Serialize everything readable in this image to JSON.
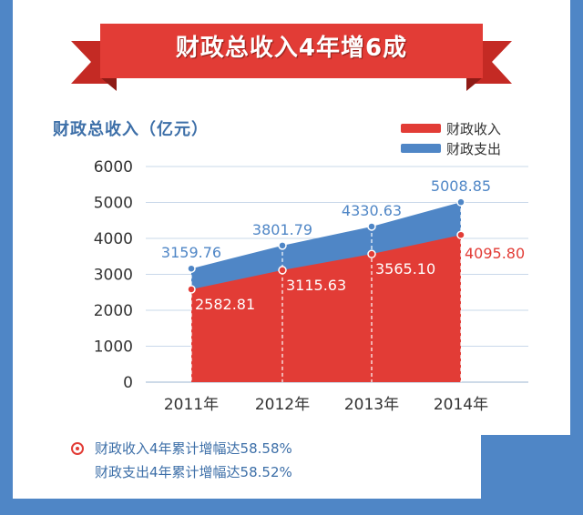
{
  "banner": {
    "title": "财政总收入4年增6成"
  },
  "colors": {
    "income": "#e23c36",
    "expense": "#4f86c6",
    "banner": "#e23c36",
    "banner_dark": "#a8201a",
    "axis_text": "#333333",
    "title_text": "#3d6fa8"
  },
  "chart_data": {
    "type": "area",
    "title": "财政总收入（亿元）",
    "categories": [
      "2011年",
      "2012年",
      "2013年",
      "2014年"
    ],
    "ylim": [
      0,
      6000
    ],
    "yticks": [
      "0",
      "1000",
      "2000",
      "3000",
      "4000",
      "5000",
      "6000"
    ],
    "grid": true,
    "legend_position": "top-right",
    "series": [
      {
        "name": "财政收入",
        "values": [
          2582.81,
          3115.63,
          3565.1,
          4095.8
        ],
        "labels": [
          "2582.81",
          "3115.63",
          "3565.10",
          "4095.80"
        ]
      },
      {
        "name": "财政支出",
        "values": [
          3159.76,
          3801.79,
          4330.63,
          5008.85
        ],
        "labels": [
          "3159.76",
          "3801.79",
          "4330.63",
          "5008.85"
        ]
      }
    ]
  },
  "notes": [
    "财政收入4年累计增幅达58.58%",
    "财政支出4年累计增幅达58.52%"
  ]
}
